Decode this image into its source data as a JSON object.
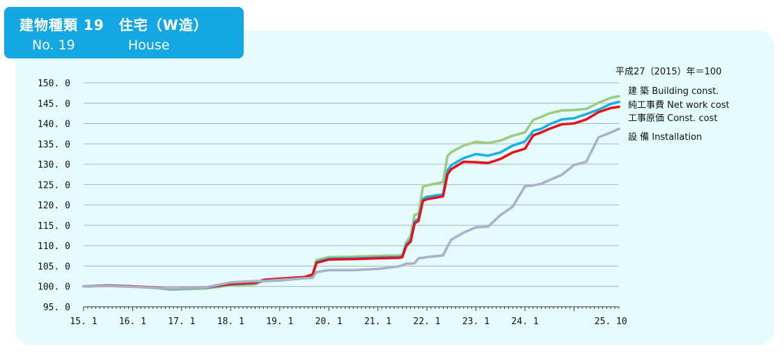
{
  "header": {
    "title_jp": "建物種類 19　住宅（W造）",
    "title_en_no": "No. 19",
    "title_en_name": "House"
  },
  "colors": {
    "header_bg": "#14a7e3",
    "panel_bg": "#e6fbfb",
    "building": "#9ecb82",
    "network": "#1eafe6",
    "const": "#e3141e",
    "install": "#aab2c8",
    "gridline": "#a9b6bb"
  },
  "chart_data": {
    "type": "line",
    "base_note": "平成27（2015）年＝100",
    "ylim": [
      95,
      150
    ],
    "yticks": [
      95,
      100,
      105,
      110,
      115,
      120,
      125,
      130,
      135,
      140,
      145,
      150
    ],
    "ytick_labels": [
      "95. 0",
      "100. 0",
      "105. 0",
      "110. 0",
      "115. 0",
      "120. 0",
      "125. 0",
      "130. 0",
      "135. 0",
      "140. 0",
      "145. 0",
      "150. 0"
    ],
    "xlim": [
      2015.0,
      2025.917
    ],
    "xticks": [
      2015.0,
      2016.0,
      2017.0,
      2018.0,
      2019.0,
      2020.0,
      2021.0,
      2022.0,
      2023.0,
      2024.0,
      2025.75
    ],
    "xtick_labels": [
      "15. 1",
      "16. 1",
      "17. 1",
      "18. 1",
      "19. 1",
      "20. 1",
      "21. 1",
      "22. 1",
      "23. 1",
      "24. 1",
      "25. 10"
    ],
    "grid": true,
    "legend_placement": "right",
    "series": [
      {
        "name": "建 築  Building const.",
        "color_key": "building",
        "x": [
          2015.0,
          2015.5,
          2016.0,
          2016.5,
          2016.75,
          2017.0,
          2017.5,
          2018.0,
          2018.5,
          2018.67,
          2019.0,
          2019.5,
          2019.67,
          2019.75,
          2020.0,
          2020.5,
          2021.0,
          2021.42,
          2021.5,
          2021.58,
          2021.67,
          2021.75,
          2021.83,
          2021.92,
          2022.0,
          2022.33,
          2022.42,
          2022.5,
          2022.75,
          2023.0,
          2023.25,
          2023.5,
          2023.75,
          2024.0,
          2024.17,
          2024.33,
          2024.5,
          2024.75,
          2025.0,
          2025.25,
          2025.5,
          2025.75,
          2025.917
        ],
        "y": [
          100.0,
          100.3,
          100.0,
          99.6,
          99.2,
          99.3,
          99.5,
          100.3,
          100.5,
          101.6,
          101.8,
          102.3,
          103.0,
          106.5,
          107.2,
          107.3,
          107.5,
          107.6,
          107.8,
          110.8,
          112.4,
          117.6,
          117.8,
          124.5,
          124.8,
          125.6,
          132.0,
          133.0,
          134.6,
          135.5,
          135.2,
          135.8,
          137.0,
          137.8,
          140.9,
          141.6,
          142.5,
          143.2,
          143.3,
          143.6,
          145.1,
          146.3,
          146.7
        ]
      },
      {
        "name": "純工事費  Net work cost",
        "color_key": "network",
        "x": [
          2015.0,
          2015.5,
          2016.0,
          2016.5,
          2016.75,
          2017.0,
          2017.5,
          2018.0,
          2018.5,
          2018.67,
          2019.0,
          2019.5,
          2019.67,
          2019.75,
          2020.0,
          2020.5,
          2021.0,
          2021.42,
          2021.5,
          2021.58,
          2021.67,
          2021.75,
          2021.83,
          2021.92,
          2022.0,
          2022.33,
          2022.42,
          2022.5,
          2022.75,
          2023.0,
          2023.25,
          2023.5,
          2023.75,
          2024.0,
          2024.17,
          2024.33,
          2024.5,
          2024.75,
          2025.0,
          2025.25,
          2025.5,
          2025.75,
          2025.917
        ],
        "y": [
          100.0,
          100.2,
          100.0,
          99.6,
          99.4,
          99.5,
          99.7,
          100.5,
          100.8,
          101.3,
          101.5,
          102.0,
          102.6,
          106.0,
          106.8,
          106.9,
          107.1,
          107.2,
          107.4,
          110.3,
          111.5,
          116.0,
          116.6,
          121.5,
          122.0,
          122.6,
          128.5,
          129.8,
          131.5,
          132.5,
          132.1,
          132.9,
          134.6,
          135.6,
          138.2,
          138.7,
          139.8,
          141.0,
          141.3,
          142.3,
          143.4,
          144.8,
          145.3
        ]
      },
      {
        "name": "工事原価  Const. cost",
        "color_key": "const",
        "x": [
          2015.0,
          2015.5,
          2016.0,
          2016.5,
          2016.75,
          2017.0,
          2017.5,
          2018.0,
          2018.5,
          2018.67,
          2019.0,
          2019.5,
          2019.67,
          2019.75,
          2020.0,
          2020.5,
          2021.0,
          2021.42,
          2021.5,
          2021.58,
          2021.67,
          2021.75,
          2021.83,
          2021.92,
          2022.0,
          2022.33,
          2022.42,
          2022.5,
          2022.75,
          2023.0,
          2023.25,
          2023.5,
          2023.75,
          2024.0,
          2024.17,
          2024.33,
          2024.5,
          2024.75,
          2025.0,
          2025.25,
          2025.5,
          2025.75,
          2025.917
        ],
        "y": [
          100.0,
          100.2,
          100.0,
          99.7,
          99.5,
          99.6,
          99.8,
          100.6,
          100.9,
          101.6,
          101.9,
          102.3,
          102.9,
          105.8,
          106.6,
          106.7,
          106.9,
          107.0,
          107.2,
          110.0,
          111.0,
          115.5,
          116.1,
          121.0,
          121.4,
          122.1,
          127.5,
          128.8,
          130.6,
          130.5,
          130.3,
          131.3,
          132.9,
          133.8,
          137.1,
          137.8,
          138.7,
          139.8,
          140.0,
          141.0,
          142.8,
          143.8,
          144.1
        ]
      },
      {
        "name": "設 備  Installation",
        "color_key": "install",
        "x": [
          2015.0,
          2015.5,
          2016.0,
          2016.5,
          2016.75,
          2017.0,
          2017.5,
          2018.0,
          2018.5,
          2018.67,
          2019.0,
          2019.5,
          2019.67,
          2019.75,
          2020.0,
          2020.5,
          2021.0,
          2021.42,
          2021.5,
          2021.58,
          2021.67,
          2021.75,
          2021.83,
          2021.92,
          2022.0,
          2022.33,
          2022.42,
          2022.5,
          2022.75,
          2023.0,
          2023.25,
          2023.5,
          2023.75,
          2024.0,
          2024.17,
          2024.33,
          2024.5,
          2024.75,
          2025.0,
          2025.25,
          2025.5,
          2025.75,
          2025.917
        ],
        "y": [
          100.0,
          100.1,
          99.9,
          99.6,
          99.5,
          99.6,
          99.8,
          101.0,
          101.3,
          101.3,
          101.6,
          102.0,
          102.1,
          103.5,
          104.0,
          104.0,
          104.3,
          104.9,
          105.2,
          105.6,
          105.6,
          105.7,
          106.9,
          107.0,
          107.2,
          107.6,
          109.8,
          111.5,
          113.2,
          114.5,
          114.7,
          117.5,
          119.6,
          124.6,
          124.8,
          125.2,
          126.1,
          127.4,
          129.8,
          130.6,
          136.6,
          137.8,
          138.7
        ]
      }
    ]
  }
}
